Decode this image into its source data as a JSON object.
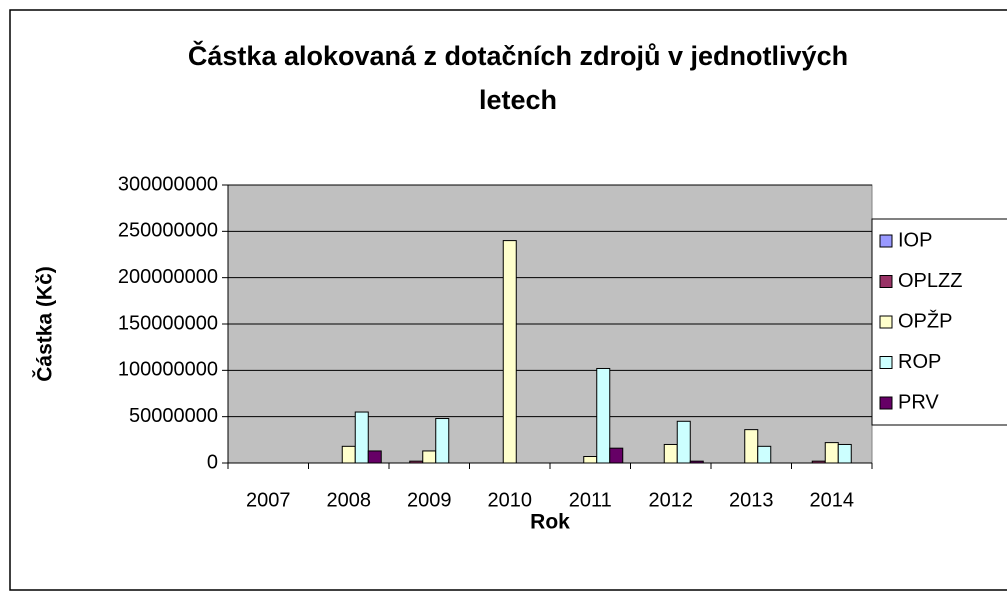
{
  "chart_data": {
    "type": "bar",
    "title": [
      "Částka alokovaná z dotačních zdrojů v jednotlivých",
      "letech"
    ],
    "x_label": "Rok",
    "y_label": "Částka (Kč)",
    "categories": [
      "2007",
      "2008",
      "2009",
      "2010",
      "2011",
      "2012",
      "2013",
      "2014"
    ],
    "series": [
      {
        "name": "IOP",
        "color": "#9999ff",
        "values": [
          0,
          0,
          0,
          0,
          0,
          0,
          0,
          0
        ]
      },
      {
        "name": "OPLZZ",
        "color": "#993366",
        "values": [
          0,
          0,
          2000000,
          0,
          0,
          0,
          0,
          2000000
        ]
      },
      {
        "name": "OPŽP",
        "color": "#ffffcc",
        "values": [
          0,
          18000000,
          13000000,
          240000000,
          7000000,
          20000000,
          36000000,
          22000000
        ]
      },
      {
        "name": "ROP",
        "color": "#ccffff",
        "values": [
          0,
          55000000,
          48000000,
          0,
          102000000,
          45000000,
          18000000,
          20000000
        ]
      },
      {
        "name": "PRV",
        "color": "#660066",
        "values": [
          0,
          13000000,
          0,
          0,
          16000000,
          2000000,
          0,
          0
        ]
      }
    ],
    "ylim": [
      0,
      300000000
    ],
    "yticks": [
      0,
      50000000,
      100000000,
      150000000,
      200000000,
      250000000,
      300000000
    ],
    "grid": true,
    "legend": "right",
    "plot_background": "#c0c0c0"
  }
}
